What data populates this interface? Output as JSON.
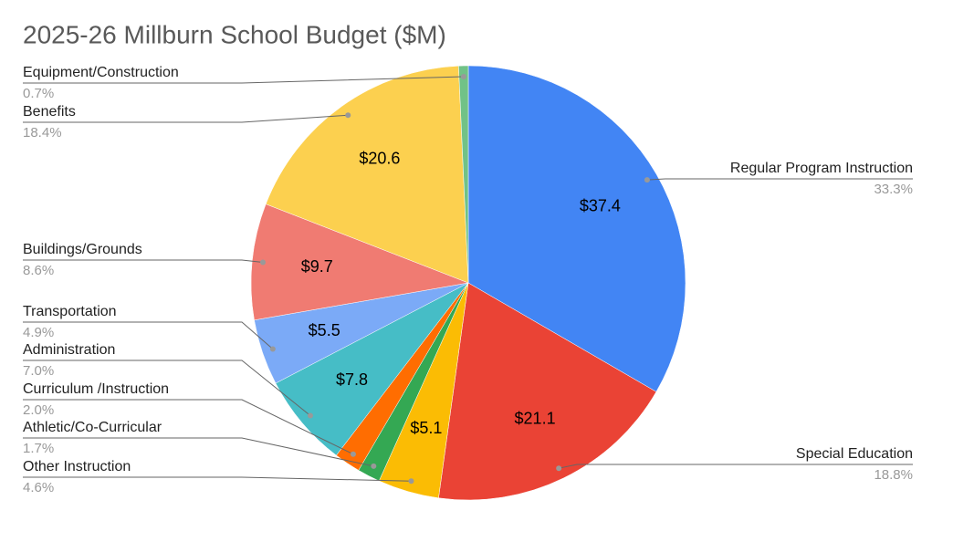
{
  "chart_data": {
    "type": "pie",
    "title": "2025-26 Millburn School Budget ($M)",
    "categories": [
      "Regular Program Instruction",
      "Special Education",
      "Other Instruction",
      "Athletic/Co-Curricular",
      "Curriculum /Instruction",
      "Administration",
      "Transportation",
      "Buildings/Grounds",
      "Benefits",
      "Equipment/Construction"
    ],
    "values": [
      37.4,
      21.1,
      5.1,
      1.9,
      2.2,
      7.8,
      5.5,
      9.7,
      20.6,
      0.8
    ],
    "value_labels": [
      "$37.4",
      "$21.1",
      "$5.1",
      null,
      null,
      "$7.8",
      "$5.5",
      "$9.7",
      "$20.6",
      null
    ],
    "percent_labels": [
      "33.3%",
      "18.8%",
      "4.6%",
      "1.7%",
      "2.0%",
      "7.0%",
      "4.9%",
      "8.6%",
      "18.4%",
      "0.7%"
    ],
    "colors": [
      "#4285f4",
      "#ea4335",
      "#fbbc04",
      "#34a853",
      "#ff6d01",
      "#46bdc6",
      "#7baaf7",
      "#f07b72",
      "#fcd04f",
      "#71c287"
    ]
  }
}
